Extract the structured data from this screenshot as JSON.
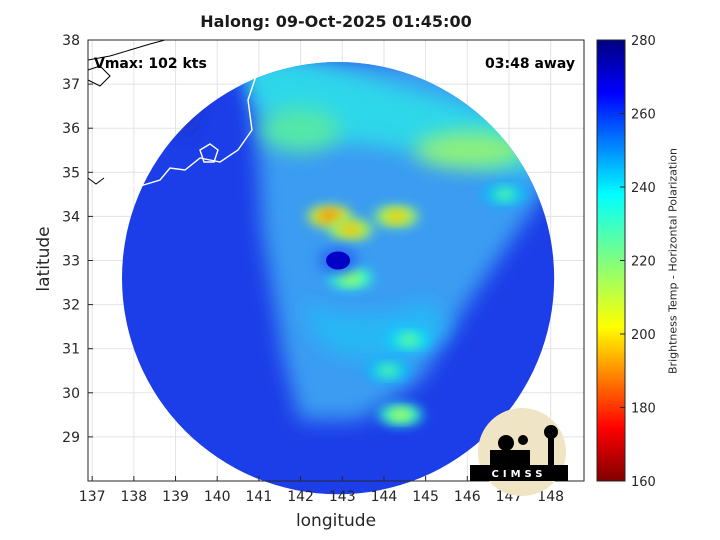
{
  "chart_data": {
    "type": "heatmap",
    "title": "Halong: 09-Oct-2025 01:45:00",
    "xlabel": "longitude",
    "ylabel": "latitude",
    "xlim": [
      136.9,
      148.8
    ],
    "ylim": [
      28.0,
      38.0
    ],
    "xticks": [
      137,
      138,
      139,
      140,
      141,
      142,
      143,
      144,
      145,
      146,
      147,
      148
    ],
    "yticks": [
      29,
      30,
      31,
      32,
      33,
      34,
      35,
      36,
      37,
      38
    ],
    "grid": true,
    "annotations": {
      "vmax": "Vmax: 102 kts",
      "time_away": "03:48 away"
    },
    "colorbar": {
      "label": "Brightness Temp - Horizontal Polarization",
      "range": [
        160,
        280
      ],
      "ticks": [
        160,
        180,
        200,
        220,
        240,
        260,
        280
      ],
      "placement": "right"
    },
    "swath": {
      "center": [
        142.9,
        32.6
      ],
      "radius_deg_lat": 4.9
    },
    "storm_center": [
      142.9,
      33.0
    ],
    "eye_brightness_temp": 262,
    "rainband_cold_cores": [
      {
        "lon": 142.7,
        "lat": 34.0,
        "value": 188
      },
      {
        "lon": 143.2,
        "lat": 33.7,
        "value": 195
      },
      {
        "lon": 144.3,
        "lat": 34.0,
        "value": 196
      },
      {
        "lon": 143.2,
        "lat": 32.6,
        "value": 212
      },
      {
        "lon": 144.6,
        "lat": 31.2,
        "value": 222
      },
      {
        "lon": 144.1,
        "lat": 30.5,
        "value": 225
      },
      {
        "lon": 144.4,
        "lat": 29.5,
        "value": 212
      },
      {
        "lon": 146.9,
        "lat": 34.5,
        "value": 225
      },
      {
        "lon": 147.2,
        "lat": 36.1,
        "value": 215
      }
    ]
  },
  "logo": {
    "text": "CIMSS"
  }
}
